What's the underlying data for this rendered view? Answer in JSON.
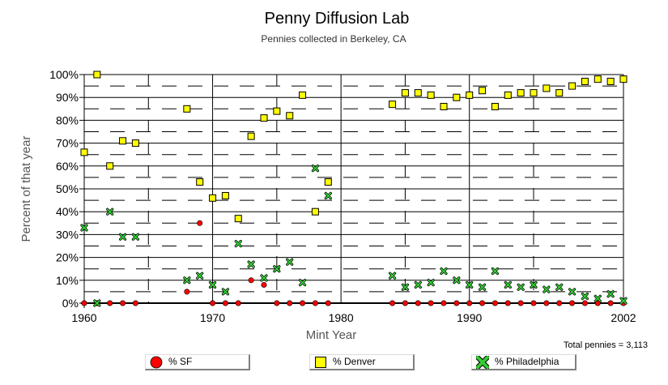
{
  "title": "Penny Diffusion Lab",
  "subtitle": "Pennies collected in Berkeley, CA",
  "total_text": "Total pennies = 3,113",
  "legend": {
    "sf": "% SF",
    "denver": "% Denver",
    "philadelphia": "% Philadelphia"
  },
  "colors": {
    "sf": "#ff0000",
    "denver": "#ffff00",
    "philadelphia": "#33cc33",
    "grid": "#000000"
  },
  "chart_data": {
    "type": "scatter",
    "title": "Penny Diffusion Lab",
    "subtitle": "Pennies collected in Berkeley, CA",
    "xlabel": "Mint Year",
    "ylabel": "Percent of that year",
    "xlim": [
      1960,
      2002
    ],
    "ylim": [
      0,
      100
    ],
    "xticks": [
      "1960",
      "1970",
      "1980",
      "1990",
      "2002"
    ],
    "yticks": [
      "0%",
      "10%",
      "20%",
      "30%",
      "40%",
      "50%",
      "60%",
      "70%",
      "80%",
      "90%",
      "100%"
    ],
    "grid": true,
    "legend_position": "bottom",
    "series": [
      {
        "name": "% SF",
        "marker": "circle",
        "x": [
          1960,
          1961,
          1962,
          1963,
          1964,
          1968,
          1969,
          1970,
          1971,
          1972,
          1973,
          1974,
          1975,
          1976,
          1977,
          1978,
          1979,
          1984,
          1985,
          1986,
          1987,
          1988,
          1989,
          1990,
          1991,
          1992,
          1993,
          1994,
          1995,
          1996,
          1997,
          1998,
          1999,
          2000,
          2001,
          2002
        ],
        "y": [
          0,
          0,
          0,
          0,
          0,
          5,
          35,
          0,
          0,
          0,
          10,
          8,
          0,
          0,
          0,
          0,
          0,
          0,
          0,
          0,
          0,
          0,
          0,
          0,
          0,
          0,
          0,
          0,
          0,
          0,
          0,
          0,
          0,
          0,
          0,
          0
        ]
      },
      {
        "name": "% Denver",
        "marker": "square",
        "x": [
          1960,
          1961,
          1962,
          1963,
          1964,
          1968,
          1969,
          1970,
          1971,
          1972,
          1973,
          1974,
          1975,
          1976,
          1977,
          1978,
          1979,
          1984,
          1985,
          1986,
          1987,
          1988,
          1989,
          1990,
          1991,
          1992,
          1993,
          1994,
          1995,
          1996,
          1997,
          1998,
          1999,
          2000,
          2001,
          2002
        ],
        "y": [
          66,
          100,
          60,
          71,
          70,
          85,
          53,
          46,
          47,
          37,
          73,
          81,
          84,
          82,
          91,
          40,
          53,
          87,
          92,
          92,
          91,
          86,
          90,
          91,
          93,
          86,
          91,
          92,
          92,
          94,
          92,
          95,
          97,
          98,
          97,
          98
        ]
      },
      {
        "name": "% Philadelphia",
        "marker": "x",
        "x": [
          1960,
          1961,
          1962,
          1963,
          1964,
          1968,
          1969,
          1970,
          1971,
          1972,
          1973,
          1974,
          1975,
          1976,
          1977,
          1978,
          1979,
          1984,
          1985,
          1986,
          1987,
          1988,
          1989,
          1990,
          1991,
          1992,
          1993,
          1994,
          1995,
          1996,
          1997,
          1998,
          1999,
          2000,
          2001,
          2002
        ],
        "y": [
          33,
          0,
          40,
          29,
          29,
          10,
          12,
          8,
          5,
          26,
          17,
          11,
          15,
          18,
          9,
          59,
          47,
          12,
          7,
          8,
          9,
          14,
          10,
          8,
          7,
          14,
          8,
          7,
          8,
          6,
          7,
          5,
          3,
          2,
          4,
          1
        ]
      }
    ]
  }
}
